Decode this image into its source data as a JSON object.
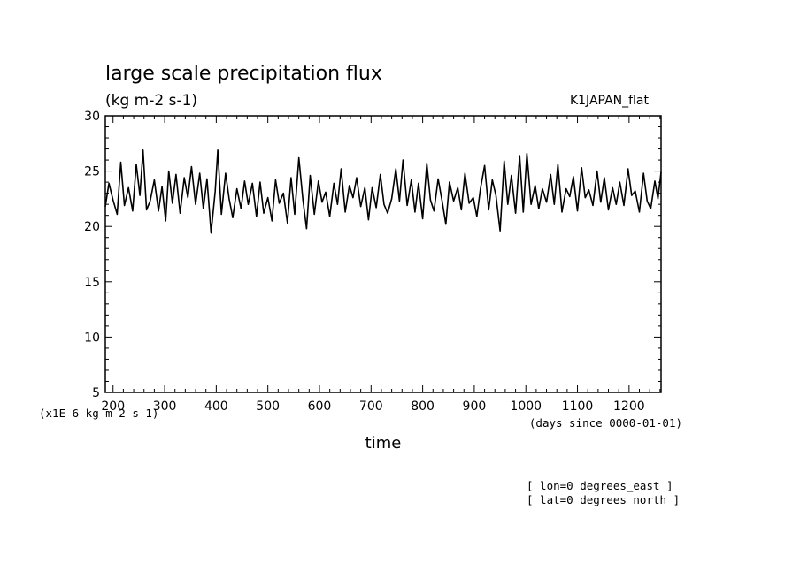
{
  "chart_data": {
    "type": "line",
    "title": "large scale precipitation flux",
    "subtitle": "(kg m-2 s-1)",
    "run_label": "K1JAPAN_flat",
    "xlabel": "time",
    "x_units": "(days since 0000-01-01)",
    "y_units": "(x1E-6 kg m-2 s-1)",
    "xlim": [
      185,
      1262
    ],
    "ylim": [
      5,
      30
    ],
    "x_ticks": [
      "200",
      "300",
      "400",
      "500",
      "600",
      "700",
      "800",
      "900",
      "1000",
      "1100",
      "1200"
    ],
    "y_ticks": [
      "5",
      "10",
      "15",
      "20",
      "25",
      "30"
    ],
    "annotations": [
      "[ lon=0 degrees_east ]",
      "[ lat=0 degrees_north ]"
    ],
    "grid": false,
    "line_color": "#000000",
    "series": [
      {
        "x": [
          185,
          192,
          200,
          208,
          215,
          222,
          230,
          238,
          245,
          252,
          258,
          265,
          272,
          280,
          288,
          295,
          302,
          308,
          315,
          322,
          330,
          338,
          345,
          352,
          360,
          368,
          375,
          382,
          390,
          398,
          403,
          410,
          418,
          425,
          432,
          440,
          448,
          455,
          462,
          470,
          478,
          485,
          492,
          500,
          508,
          515,
          522,
          530,
          538,
          545,
          552,
          560,
          568,
          575,
          582,
          590,
          598,
          605,
          612,
          620,
          628,
          635,
          642,
          650,
          658,
          665,
          672,
          680,
          688,
          695,
          702,
          710,
          718,
          725,
          732,
          740,
          748,
          755,
          762,
          770,
          778,
          785,
          792,
          800,
          808,
          815,
          822,
          830,
          838,
          845,
          852,
          860,
          868,
          875,
          882,
          890,
          898,
          905,
          912,
          920,
          928,
          935,
          942,
          950,
          958,
          965,
          972,
          980,
          988,
          995,
          1002,
          1010,
          1018,
          1025,
          1032,
          1040,
          1048,
          1055,
          1062,
          1070,
          1078,
          1085,
          1092,
          1100,
          1108,
          1115,
          1122,
          1130,
          1138,
          1145,
          1152,
          1160,
          1168,
          1175,
          1182,
          1190,
          1198,
          1205,
          1212,
          1220,
          1228,
          1235,
          1242,
          1250,
          1256,
          1262
        ],
        "values": [
          21.8,
          23.9,
          22.4,
          21.1,
          25.8,
          21.9,
          23.5,
          21.4,
          25.6,
          22.8,
          26.9,
          21.5,
          22.3,
          24.2,
          21.4,
          23.6,
          20.5,
          25.0,
          22.1,
          24.7,
          21.2,
          24.4,
          22.6,
          25.4,
          22.0,
          24.8,
          21.6,
          24.3,
          19.4,
          23.2,
          26.9,
          21.1,
          24.8,
          22.5,
          20.8,
          23.4,
          21.6,
          24.1,
          22.0,
          23.9,
          20.9,
          24.0,
          21.2,
          22.6,
          20.5,
          24.2,
          22.1,
          23.0,
          20.3,
          24.4,
          21.1,
          26.2,
          22.4,
          19.8,
          24.6,
          21.1,
          24.1,
          22.2,
          23.1,
          20.9,
          23.9,
          22.0,
          25.2,
          21.3,
          23.7,
          22.6,
          24.4,
          21.8,
          23.5,
          20.6,
          23.5,
          21.7,
          24.7,
          22.0,
          21.2,
          22.5,
          25.2,
          22.3,
          26.0,
          21.9,
          24.2,
          21.3,
          23.9,
          20.7,
          25.7,
          22.4,
          21.4,
          24.3,
          22.2,
          20.2,
          24.0,
          22.3,
          23.5,
          21.5,
          24.8,
          22.1,
          22.6,
          20.9,
          23.4,
          25.5,
          21.5,
          24.2,
          22.8,
          19.6,
          25.9,
          22.0,
          24.6,
          21.2,
          26.4,
          21.3,
          26.6,
          22.0,
          23.7,
          21.6,
          23.4,
          22.2,
          24.7,
          22.0,
          25.6,
          21.3,
          23.4,
          22.7,
          24.5,
          21.4,
          25.3,
          22.6,
          23.3,
          21.9,
          25.0,
          22.2,
          24.4,
          21.5,
          23.5,
          22.0,
          24.0,
          21.9,
          25.2,
          22.8,
          23.2,
          21.3,
          24.8,
          22.3,
          21.6,
          24.1,
          22.5,
          24.9
        ]
      }
    ]
  }
}
